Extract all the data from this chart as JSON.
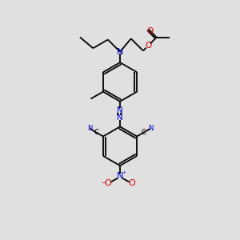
{
  "background_color": "#e0e0e0",
  "line_color": "#000000",
  "N_color": "#0000cc",
  "O_color": "#cc0000",
  "fig_width": 3.0,
  "fig_height": 3.0,
  "dpi": 100,
  "xlim": [
    0,
    10
  ],
  "ylim": [
    0,
    10
  ]
}
